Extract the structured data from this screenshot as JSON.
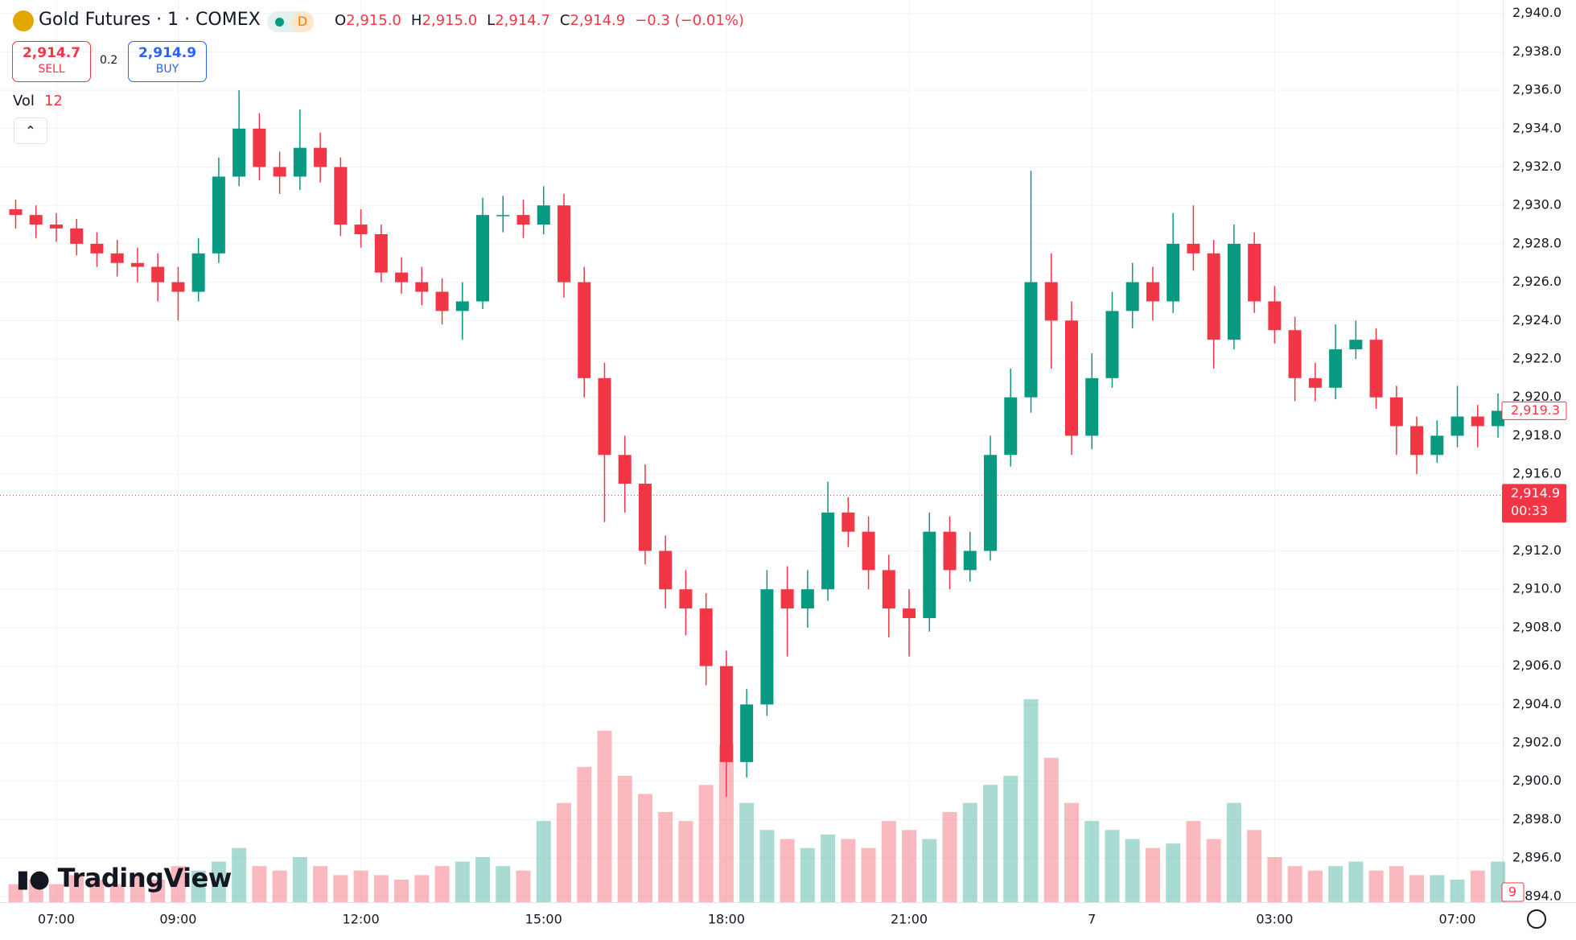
{
  "chart_data": {
    "type": "candlestick",
    "title": "Gold Futures · 1 · COMEX",
    "badge": "D",
    "ohlc_legend": [
      {
        "key": "O",
        "value": "2,915.0"
      },
      {
        "key": "H",
        "value": "2,915.0"
      },
      {
        "key": "L",
        "value": "2,914.7"
      },
      {
        "key": "C",
        "value": "2,914.9"
      }
    ],
    "change": "−0.3 (−0.01%)",
    "trade": {
      "sell_price": "2,914.7",
      "sell_label": "SELL",
      "spread": "0.2",
      "buy_price": "2,914.9",
      "buy_label": "BUY"
    },
    "volume_label": "Vol",
    "volume_value": "12",
    "watermark": "TradingView",
    "up_color": "#089981",
    "down_color": "#f23645",
    "grid": true,
    "categories": [
      null,
      null,
      "07:00",
      null,
      null,
      null,
      null,
      null,
      "09:00",
      null,
      null,
      null,
      null,
      null,
      null,
      null,
      null,
      "12:00",
      null,
      null,
      null,
      null,
      null,
      null,
      null,
      null,
      "15:00",
      null,
      null,
      null,
      null,
      null,
      null,
      null,
      null,
      "18:00",
      null,
      null,
      null,
      null,
      null,
      null,
      null,
      null,
      "21:00",
      null,
      null,
      null,
      null,
      null,
      null,
      null,
      null,
      "7",
      null,
      null,
      null,
      null,
      null,
      null,
      null,
      null,
      "03:00",
      null,
      null,
      null,
      null,
      null,
      null,
      null,
      null,
      "07:00",
      null,
      null
    ],
    "open": [
      2929.8,
      2929.5,
      2929,
      2928.8,
      2928,
      2927.5,
      2927,
      2926.8,
      2926,
      2925.5,
      2927.5,
      2931.5,
      2934,
      2932,
      2931.5,
      2933,
      2932,
      2929,
      2928.5,
      2926.5,
      2926,
      2925.5,
      2924.5,
      2925,
      2929.5,
      2929.5,
      2929,
      2930,
      2926,
      2921,
      2917,
      2915.5,
      2912,
      2910,
      2909,
      2906,
      2901,
      2904,
      2910,
      2909,
      2910,
      2914,
      2913,
      2911,
      2909,
      2908.5,
      2913,
      2911,
      2912,
      2917,
      2920,
      2926,
      2924,
      2918,
      2921,
      2924.5,
      2926,
      2925,
      2928,
      2927.5,
      2923,
      2928,
      2925,
      2923.5,
      2921,
      2920.5,
      2922.5,
      2923,
      2920,
      2918.5,
      2917,
      2918,
      2919,
      2918.5
    ],
    "high": [
      2930.3,
      2930,
      2929.6,
      2929.3,
      2928.6,
      2928.2,
      2927.8,
      2927.5,
      2926.8,
      2928.3,
      2932.5,
      2936,
      2934.8,
      2932.8,
      2935,
      2933.8,
      2932.5,
      2929.8,
      2929,
      2927.3,
      2926.8,
      2926.2,
      2926,
      2930.4,
      2930.5,
      2930.3,
      2931,
      2930.6,
      2926.8,
      2921.8,
      2918,
      2916.5,
      2912.8,
      2911,
      2909.8,
      2906.8,
      2904.8,
      2911,
      2911.2,
      2911,
      2915.6,
      2914.8,
      2913.8,
      2911.8,
      2910,
      2914,
      2913.8,
      2913,
      2918,
      2921.5,
      2931.8,
      2927.5,
      2925,
      2922.3,
      2925.5,
      2927,
      2926.8,
      2929.6,
      2930,
      2928.2,
      2929,
      2928.6,
      2925.8,
      2924.2,
      2921.8,
      2923.8,
      2924,
      2923.6,
      2920.6,
      2919,
      2918.8,
      2920.6,
      2919.6,
      2920.2
    ],
    "low": [
      2928.8,
      2928.3,
      2928.1,
      2927.4,
      2926.8,
      2926.3,
      2926,
      2925,
      2924,
      2925,
      2927,
      2931,
      2931.3,
      2930.6,
      2930.8,
      2931.2,
      2928.4,
      2927.8,
      2926,
      2925.4,
      2924.8,
      2923.8,
      2923,
      2924.6,
      2928.6,
      2928.3,
      2928.5,
      2925.2,
      2920,
      2913.5,
      2914,
      2911.3,
      2909,
      2907.6,
      2905,
      2899.2,
      2900.2,
      2903.4,
      2906.5,
      2908,
      2909.4,
      2912.2,
      2910,
      2907.5,
      2906.5,
      2907.8,
      2910,
      2910.4,
      2911.5,
      2916.4,
      2919.2,
      2921.5,
      2917,
      2917.3,
      2920.5,
      2923.6,
      2924,
      2924.4,
      2926.6,
      2921.5,
      2922.5,
      2924.4,
      2922.8,
      2919.8,
      2919.8,
      2919.9,
      2922,
      2919.4,
      2917,
      2916,
      2916.6,
      2917.4,
      2917.4,
      2917.9
    ],
    "close": [
      2929.5,
      2929,
      2928.8,
      2928,
      2927.5,
      2927,
      2926.8,
      2926,
      2925.5,
      2927.5,
      2931.5,
      2934,
      2932,
      2931.5,
      2933,
      2932,
      2929,
      2928.5,
      2926.5,
      2926,
      2925.5,
      2924.5,
      2925,
      2929.5,
      2929.5,
      2929,
      2930,
      2926,
      2921,
      2917,
      2915.5,
      2912,
      2910,
      2909,
      2906,
      2901,
      2904,
      2910,
      2909,
      2910,
      2914,
      2913,
      2911,
      2909,
      2908.5,
      2913,
      2911,
      2912,
      2917,
      2920,
      2926,
      2924,
      2918,
      2921,
      2924.5,
      2926,
      2925,
      2928,
      2927.5,
      2923,
      2928,
      2925,
      2923.5,
      2921,
      2920.5,
      2922.5,
      2923,
      2920,
      2918.5,
      2917,
      2918,
      2919,
      2918.5,
      2919.3
    ],
    "volume": [
      4,
      5,
      4,
      6,
      5,
      4,
      6,
      5,
      8,
      7,
      9,
      12,
      8,
      7,
      10,
      8,
      6,
      7,
      6,
      5,
      6,
      8,
      9,
      10,
      8,
      7,
      18,
      22,
      30,
      38,
      28,
      24,
      20,
      18,
      26,
      35,
      22,
      16,
      14,
      12,
      15,
      14,
      12,
      18,
      16,
      14,
      20,
      22,
      26,
      28,
      45,
      32,
      22,
      18,
      16,
      14,
      12,
      13,
      18,
      14,
      22,
      16,
      10,
      8,
      7,
      8,
      9,
      7,
      8,
      6,
      6,
      5,
      7,
      9
    ],
    "volume_ylim": [
      0,
      200
    ],
    "ylim": [
      2893.7,
      2940.7
    ],
    "yticks": [
      {
        "value": 2894,
        "label": "2,894.0"
      },
      {
        "value": 2896,
        "label": "2,896.0"
      },
      {
        "value": 2898,
        "label": "2,898.0"
      },
      {
        "value": 2900,
        "label": "2,900.0"
      },
      {
        "value": 2902,
        "label": "2,902.0"
      },
      {
        "value": 2904,
        "label": "2,904.0"
      },
      {
        "value": 2906,
        "label": "2,906.0"
      },
      {
        "value": 2908,
        "label": "2,908.0"
      },
      {
        "value": 2910,
        "label": "2,910.0"
      },
      {
        "value": 2912,
        "label": "2,912.0"
      },
      {
        "value": 2916,
        "label": "2,916.0"
      },
      {
        "value": 2918,
        "label": "2,918.0"
      },
      {
        "value": 2920,
        "label": "2,920.0"
      },
      {
        "value": 2922,
        "label": "2,922.0"
      },
      {
        "value": 2924,
        "label": "2,924.0"
      },
      {
        "value": 2926,
        "label": "2,926.0"
      },
      {
        "value": 2928,
        "label": "2,928.0"
      },
      {
        "value": 2930,
        "label": "2,930.0"
      },
      {
        "value": 2932,
        "label": "2,932.0"
      },
      {
        "value": 2934,
        "label": "2,934.0"
      },
      {
        "value": 2936,
        "label": "2,936.0"
      },
      {
        "value": 2938,
        "label": "2,938.0"
      },
      {
        "value": 2940,
        "label": "2,940.0"
      }
    ],
    "last_price": {
      "value": 2914.9,
      "label": "2,914.9"
    },
    "countdown": "00:33",
    "marker_price": {
      "value": 2919.3,
      "label": "2,919.3"
    }
  }
}
